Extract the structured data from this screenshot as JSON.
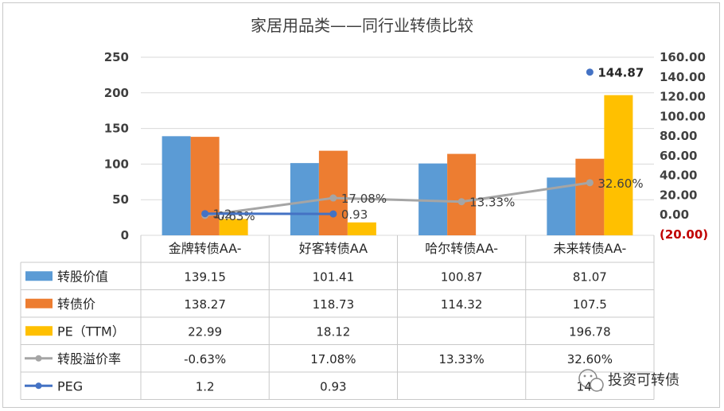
{
  "chart_data": {
    "type": "bar",
    "title": "家居用品类——同行业转债比较",
    "categories": [
      "金牌转债AA-",
      "好客转债AA",
      "哈尔转债AA-",
      "未来转债AA-"
    ],
    "y_left": {
      "min": 0,
      "max": 250,
      "ticks": [
        "0",
        "50",
        "100",
        "150",
        "200",
        "250"
      ]
    },
    "y_right": {
      "min": -20,
      "max": 160,
      "ticks": [
        "(20.00)",
        "0.00",
        "20.00",
        "40.00",
        "60.00",
        "80.00",
        "100.00",
        "120.00",
        "140.00",
        "160.00"
      ]
    },
    "series": [
      {
        "name": "转股价值",
        "kind": "bar",
        "axis": "left",
        "color": "#5b9bd5",
        "values": [
          139.15,
          101.41,
          100.87,
          81.07
        ],
        "labels": [
          "139.15",
          "101.41",
          "100.87",
          "81.07"
        ]
      },
      {
        "name": "转债价",
        "kind": "bar",
        "axis": "left",
        "color": "#ed7d31",
        "values": [
          138.27,
          118.73,
          114.32,
          107.5
        ],
        "labels": [
          "138.27",
          "118.73",
          "114.32",
          "107.5"
        ]
      },
      {
        "name": "PE（TTM）",
        "kind": "bar",
        "axis": "left",
        "color": "#ffc000",
        "values": [
          22.99,
          18.12,
          null,
          196.78
        ],
        "labels": [
          "22.99",
          "18.12",
          "",
          "196.78"
        ]
      },
      {
        "name": "转股溢价率",
        "kind": "line",
        "axis": "right",
        "color": "#a5a5a5",
        "values": [
          -0.63,
          17.08,
          13.33,
          32.6
        ],
        "labels": [
          "-0.63%",
          "17.08%",
          "13.33%",
          "32.60%"
        ]
      },
      {
        "name": "PEG",
        "kind": "line",
        "axis": "right",
        "color": "#4472c4",
        "values": [
          1.2,
          0.93,
          null,
          144.87
        ],
        "labels": [
          "1.2",
          "0.93",
          "",
          "144.87"
        ]
      }
    ],
    "table_visible": [
      "1.2",
      "0.93",
      "",
      "14..."
    ],
    "grid": true,
    "legend": "data-table"
  },
  "watermark": {
    "text": "投资可转债",
    "icon": "wechat-icon"
  }
}
